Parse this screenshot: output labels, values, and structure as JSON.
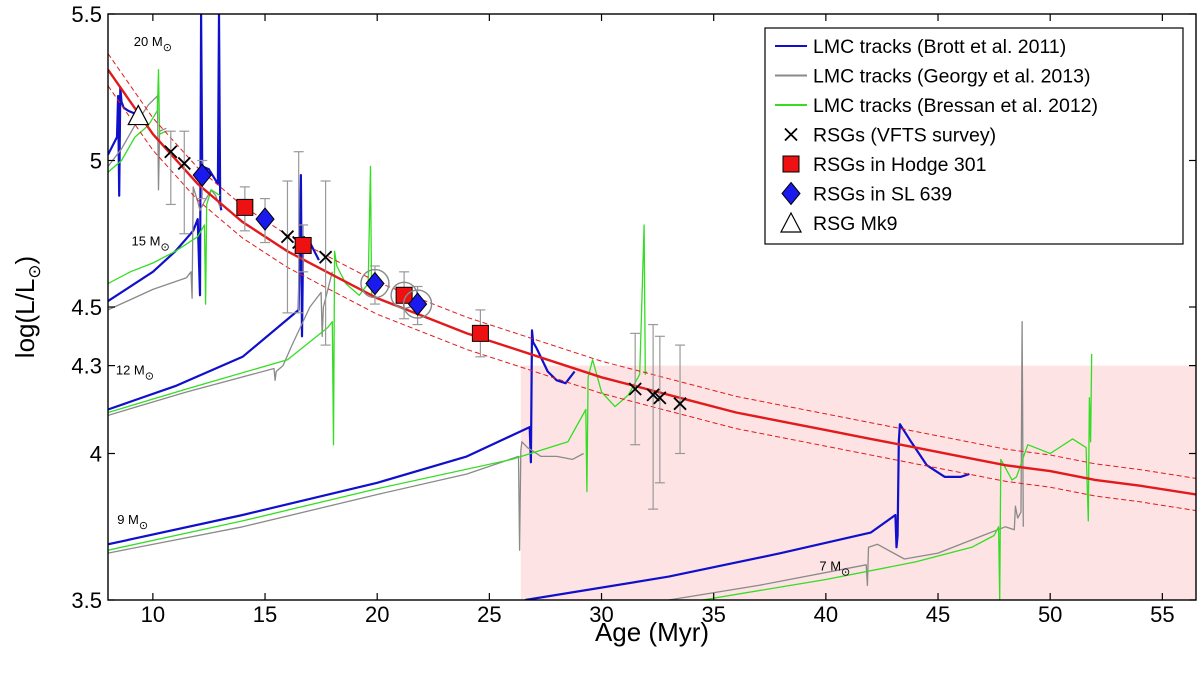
{
  "chart_data": {
    "type": "line",
    "xlabel": "Age (Myr)",
    "ylabel_main": "log(L/L",
    "ylabel_sun": "⊙",
    "ylabel_close": ")",
    "xlim": [
      8,
      56.5
    ],
    "ylim": [
      3.5,
      5.5
    ],
    "x_ticks": [
      10,
      15,
      20,
      25,
      30,
      35,
      40,
      45,
      50,
      55
    ],
    "x_tick_labels": [
      "10",
      "15",
      "20",
      "25",
      "30",
      "35",
      "40",
      "45",
      "50",
      "55"
    ],
    "y_ticks": [
      3.5,
      4,
      4.3,
      4.5,
      5,
      5.5
    ],
    "y_tick_labels": [
      "3.5",
      "4",
      "4.3",
      "4.5",
      "5",
      "5.5"
    ],
    "shaded_region": {
      "x": [
        26.4,
        56.5
      ],
      "y": [
        3.5,
        4.3
      ],
      "color": "#fde3e4"
    },
    "colors": {
      "brott": "#1010cc",
      "georgy": "#8a8a8a",
      "bressan": "#33dd22",
      "fit": "#e31a1c",
      "hodge": "#ee1111",
      "sl639": "#1a1aee",
      "errorbar": "#999999"
    },
    "mass_labels": [
      {
        "text": "20 M",
        "sun": "⊙",
        "x": 10.0,
        "y": 5.39
      },
      {
        "text": "15 M",
        "sun": "⊙",
        "x": 9.9,
        "y": 4.71
      },
      {
        "text": "12 M",
        "sun": "⊙",
        "x": 9.2,
        "y": 4.27
      },
      {
        "text": "9 M",
        "sun": "⊙",
        "x": 9.1,
        "y": 3.76
      },
      {
        "text": "7 M",
        "sun": "⊙",
        "x": 40.4,
        "y": 3.6
      }
    ],
    "fit_curve": {
      "name": "Best fit",
      "x": [
        8,
        10,
        12,
        14,
        16,
        18,
        20,
        22,
        24,
        26,
        28,
        30,
        32,
        34,
        36,
        38,
        40,
        42,
        44,
        46,
        48,
        50,
        52,
        54,
        56.5
      ],
      "y": [
        5.31,
        5.09,
        4.92,
        4.79,
        4.69,
        4.61,
        4.53,
        4.47,
        4.41,
        4.36,
        4.31,
        4.26,
        4.22,
        4.18,
        4.14,
        4.11,
        4.08,
        4.05,
        4.02,
        3.99,
        3.96,
        3.94,
        3.91,
        3.89,
        3.86
      ]
    },
    "fit_band_offset": 0.055,
    "series": [
      {
        "name": "LMC tracks (Brott et al. 2011)",
        "mass": "20",
        "x": [
          8.0,
          8.4,
          8.45,
          8.5,
          8.55,
          8.6,
          8.7,
          8.9,
          9.2
        ],
        "y": [
          5.02,
          5.08,
          5.22,
          4.88,
          5.25,
          5.2,
          5.18,
          5.17,
          5.16
        ]
      },
      {
        "name": "LMC tracks (Brott et al. 2011)",
        "mass": "15",
        "x": [
          8.0,
          10.0,
          11.0,
          11.8,
          12.0,
          12.1,
          12.15,
          12.2,
          12.5,
          12.9,
          12.95,
          13.0,
          13.05
        ],
        "y": [
          4.52,
          4.62,
          4.69,
          4.76,
          4.8,
          4.54,
          5.5,
          4.98,
          4.97,
          4.92,
          5.5,
          4.85,
          4.83
        ]
      },
      {
        "name": "LMC tracks (Brott et al. 2011)",
        "mass": "12",
        "x": [
          8.0,
          11.0,
          14.0,
          16.5,
          16.6,
          16.65,
          16.7,
          17.0,
          17.4
        ],
        "y": [
          4.15,
          4.23,
          4.33,
          4.49,
          4.95,
          4.4,
          4.74,
          4.72,
          4.66
        ]
      },
      {
        "name": "LMC tracks (Brott et al. 2011)",
        "mass": "9",
        "x": [
          8.0,
          14.0,
          20.0,
          24.0,
          26.8,
          26.85,
          26.9,
          26.95,
          27.1,
          27.6,
          28.0,
          28.4,
          28.8
        ],
        "y": [
          3.69,
          3.79,
          3.9,
          3.99,
          4.09,
          3.97,
          4.42,
          4.38,
          4.36,
          4.28,
          4.25,
          4.24,
          4.28
        ]
      },
      {
        "name": "LMC tracks (Brott et al. 2011)",
        "mass": "7",
        "x": [
          26.6,
          33.0,
          38.0,
          42.0,
          43.1,
          43.15,
          43.2,
          43.25,
          43.3,
          43.8,
          44.5,
          45.3,
          46.0,
          46.4
        ],
        "y": [
          3.5,
          3.58,
          3.66,
          3.73,
          3.79,
          3.68,
          3.72,
          4.04,
          4.1,
          4.04,
          3.96,
          3.92,
          3.92,
          3.93
        ]
      },
      {
        "name": "LMC tracks (Georgy et al. 2013)",
        "mass": "20",
        "x": [
          8.0,
          8.6,
          9.2,
          9.8,
          10.2,
          10.25,
          10.3,
          10.6
        ],
        "y": [
          4.98,
          5.04,
          5.12,
          5.19,
          5.22,
          4.9,
          5.1,
          5.11
        ]
      },
      {
        "name": "LMC tracks (Georgy et al. 2013)",
        "mass": "15",
        "x": [
          8.0,
          10.0,
          11.5,
          11.7,
          11.75,
          11.8,
          12.0,
          12.1,
          12.3,
          12.6,
          12.8,
          13.0
        ],
        "y": [
          4.49,
          4.56,
          4.6,
          4.62,
          4.53,
          4.91,
          4.86,
          4.83,
          4.86,
          4.9,
          4.88,
          4.84
        ]
      },
      {
        "name": "LMC tracks (Georgy et al. 2013)",
        "mass": "12",
        "x": [
          8.0,
          11.5,
          15.4,
          15.45,
          15.5,
          15.8,
          16.2,
          17.0,
          17.5,
          17.55,
          17.6,
          18.0
        ],
        "y": [
          4.13,
          4.21,
          4.29,
          4.25,
          4.28,
          4.3,
          4.37,
          4.5,
          4.55,
          4.4,
          4.5,
          4.62
        ]
      },
      {
        "name": "LMC tracks (Georgy et al. 2013)",
        "mass": "9",
        "x": [
          8.0,
          14.0,
          20.0,
          24.0,
          26.3,
          26.35,
          26.4,
          26.45,
          26.7,
          27.3,
          28.0,
          28.7,
          29.2
        ],
        "y": [
          3.66,
          3.75,
          3.86,
          3.93,
          3.99,
          3.67,
          4.01,
          4.04,
          4.02,
          3.99,
          3.99,
          3.98,
          4.0
        ]
      },
      {
        "name": "LMC tracks (Georgy et al. 2013)",
        "mass": "7",
        "x": [
          33.0,
          37.0,
          41.8,
          41.85,
          41.9,
          42.3,
          43.5,
          45.0,
          47.0,
          48.0,
          48.4,
          48.45,
          48.5,
          48.55,
          48.7,
          48.75,
          48.8
        ],
        "y": [
          3.5,
          3.55,
          3.62,
          3.55,
          3.68,
          3.69,
          3.64,
          3.66,
          3.72,
          3.75,
          3.74,
          3.82,
          3.8,
          3.78,
          3.8,
          4.45,
          3.75
        ]
      },
      {
        "name": "LMC tracks (Bressan et al. 2012)",
        "mass": "20",
        "x": [
          8.0,
          8.6,
          9.2,
          9.8,
          10.2,
          10.25,
          10.3,
          10.6
        ],
        "y": [
          4.96,
          5.0,
          5.08,
          5.12,
          5.17,
          5.31,
          5.09,
          5.1
        ]
      },
      {
        "name": "LMC tracks (Bressan et al. 2012)",
        "mass": "15",
        "x": [
          8.0,
          9.0,
          10.0,
          11.0,
          12.0,
          12.3,
          12.35,
          12.4,
          12.6,
          13.0
        ],
        "y": [
          4.58,
          4.62,
          4.65,
          4.69,
          4.74,
          4.78,
          4.51,
          4.85,
          4.9,
          4.88
        ]
      },
      {
        "name": "LMC tracks (Bressan et al. 2012)",
        "mass": "12",
        "x": [
          8.0,
          11.5,
          16.0,
          17.8,
          18.0,
          18.05,
          18.1,
          18.2,
          18.6,
          19.2,
          19.6,
          19.7,
          19.75,
          19.8
        ],
        "y": [
          4.14,
          4.22,
          4.32,
          4.43,
          4.45,
          4.03,
          4.69,
          4.64,
          4.58,
          4.54,
          4.58,
          4.98,
          4.54,
          4.6
        ]
      },
      {
        "name": "LMC tracks (Bressan et al. 2012)",
        "mass": "9",
        "x": [
          8.0,
          14.0,
          20.0,
          26.0,
          28.5,
          29.3,
          29.35,
          29.4,
          29.6,
          30.0,
          30.6,
          31.2,
          31.7,
          31.9,
          31.95,
          32.0
        ],
        "y": [
          3.67,
          3.77,
          3.88,
          3.98,
          4.04,
          4.15,
          3.87,
          4.26,
          4.32,
          4.21,
          4.16,
          4.2,
          4.27,
          4.78,
          4.27,
          4.28
        ]
      },
      {
        "name": "LMC tracks (Bressan et al. 2012)",
        "mass": "7",
        "x": [
          34.5,
          40.0,
          44.0,
          46.5,
          47.5,
          47.7,
          47.75,
          47.8,
          48.3,
          48.5,
          49.0,
          50.0,
          51.0,
          51.6,
          51.7,
          51.75,
          51.8,
          51.85
        ],
        "y": [
          3.5,
          3.57,
          3.63,
          3.68,
          3.72,
          3.75,
          3.5,
          3.98,
          3.91,
          3.92,
          4.03,
          4.0,
          4.05,
          4.02,
          3.77,
          4.19,
          4.04,
          4.34
        ]
      }
    ],
    "points": {
      "vfts": {
        "name": "RSGs (VFTS survey)",
        "x": [
          10.8,
          11.4,
          16.0,
          16.5,
          17.7,
          31.5,
          32.3,
          32.6,
          33.5
        ],
        "y": [
          5.03,
          4.99,
          4.74,
          4.72,
          4.67,
          4.22,
          4.2,
          4.19,
          4.17
        ],
        "err_lo": [
          4.85,
          4.75,
          4.48,
          4.48,
          4.37,
          4.03,
          3.81,
          3.9,
          4.0
        ],
        "err_hi": [
          5.1,
          5.1,
          4.93,
          5.03,
          4.93,
          4.41,
          4.44,
          4.4,
          4.37
        ]
      },
      "hodge": {
        "name": "RSGs in Hodge 301",
        "x": [
          14.1,
          16.7,
          21.2,
          24.6
        ],
        "y": [
          4.84,
          4.71,
          4.54,
          4.41
        ],
        "err_lo": [
          4.76,
          4.62,
          4.46,
          4.33
        ],
        "err_hi": [
          4.91,
          4.78,
          4.62,
          4.49
        ]
      },
      "sl639": {
        "name": "RSGs in SL 639",
        "x": [
          12.2,
          15.0,
          19.9,
          21.8
        ],
        "y": [
          4.95,
          4.8,
          4.58,
          4.51
        ],
        "err_lo": [
          4.87,
          4.72,
          4.51,
          4.44
        ],
        "err_hi": [
          5.0,
          4.87,
          4.64,
          4.57
        ],
        "circled": [
          false,
          false,
          true,
          true
        ]
      },
      "mk9": {
        "name": "RSG Mk9",
        "x": [
          9.35
        ],
        "y": [
          5.15
        ]
      },
      "hodge_circled": [
        false,
        false,
        true,
        false
      ]
    },
    "legend": {
      "position": "top-right",
      "entries": [
        {
          "label": "LMC tracks (Brott et al. 2011)",
          "kind": "line",
          "color": "#1010cc"
        },
        {
          "label": "LMC tracks (Georgy et al. 2013)",
          "kind": "line",
          "color": "#8a8a8a"
        },
        {
          "label": "LMC tracks (Bressan et al. 2012)",
          "kind": "line",
          "color": "#33dd22"
        },
        {
          "label": "RSGs (VFTS survey)",
          "kind": "cross"
        },
        {
          "label": "RSGs in Hodge 301",
          "kind": "square"
        },
        {
          "label": "RSGs in SL 639",
          "kind": "diamond"
        },
        {
          "label": "RSG Mk9",
          "kind": "triangle"
        }
      ]
    }
  }
}
